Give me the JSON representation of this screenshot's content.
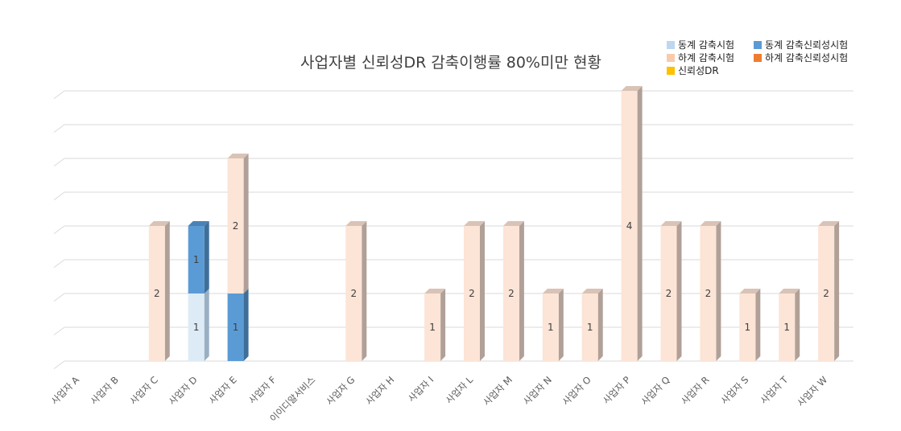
{
  "chart_data": {
    "type": "bar",
    "stacked": true,
    "three_d": true,
    "title": "사업자별 신뢰성DR 감축이행률 80%미만 현황",
    "categories": [
      "사업자 A",
      "사업자 B",
      "사업자 C",
      "사업자 D",
      "사업자 E",
      "사업자 F",
      "이이디알서비스",
      "사업자 G",
      "사업자 H",
      "사업자 I",
      "사업자 L",
      "사업자 M",
      "사업자 N",
      "사업자 O",
      "사업자 P",
      "사업자 Q",
      "사업자 R",
      "사업자 S",
      "사업자 T",
      "사업자 W"
    ],
    "series": [
      {
        "name": "동계 감축시험",
        "color": "#DDEBF7",
        "legend_color": "#BDD7EE",
        "side_color": "#9AAFC2",
        "top_color": "#C9D6E2",
        "values": [
          0,
          0,
          0,
          1,
          0,
          0,
          0,
          0,
          0,
          0,
          0,
          0,
          0,
          0,
          0,
          0,
          0,
          0,
          0,
          0
        ]
      },
      {
        "name": "동계 감축신뢰성시험",
        "color": "#5B9BD5",
        "legend_color": "#5B9BD5",
        "side_color": "#3F6E99",
        "top_color": "#4A82B5",
        "values": [
          0,
          0,
          0,
          1,
          1,
          0,
          0,
          0,
          0,
          0,
          0,
          0,
          0,
          0,
          0,
          0,
          0,
          0,
          0,
          0
        ]
      },
      {
        "name": "하계 감축시험",
        "color": "#FCE4D6",
        "legend_color": "#F8CBAD",
        "side_color": "#B0A097",
        "top_color": "#D9C3B6",
        "values": [
          0,
          0,
          2,
          0,
          2,
          0,
          0,
          2,
          0,
          1,
          2,
          2,
          1,
          1,
          4,
          2,
          2,
          1,
          1,
          2
        ]
      },
      {
        "name": "하계 감축신뢰성시험",
        "color": "#ED7D31",
        "legend_color": "#ED7D31",
        "side_color": "#B05A22",
        "top_color": "#D06A28",
        "values": [
          0,
          0,
          0,
          0,
          0,
          0,
          0,
          0,
          0,
          0,
          0,
          0,
          0,
          0,
          0,
          0,
          0,
          0,
          0,
          0
        ]
      },
      {
        "name": "신뢰성DR",
        "color": "#FFC000",
        "legend_color": "#FFC000",
        "side_color": "#B88A00",
        "top_color": "#E0A800",
        "values": [
          0,
          0,
          0,
          0,
          0,
          0,
          0,
          0,
          0,
          0,
          0,
          0,
          0,
          0,
          0,
          0,
          0,
          0,
          0,
          0
        ]
      }
    ],
    "legend_order": [
      0,
      1,
      2,
      3,
      4
    ],
    "ylim": [
      0,
      4
    ],
    "grid": true,
    "legend_position": "top-right",
    "xlabel": "",
    "ylabel": ""
  }
}
